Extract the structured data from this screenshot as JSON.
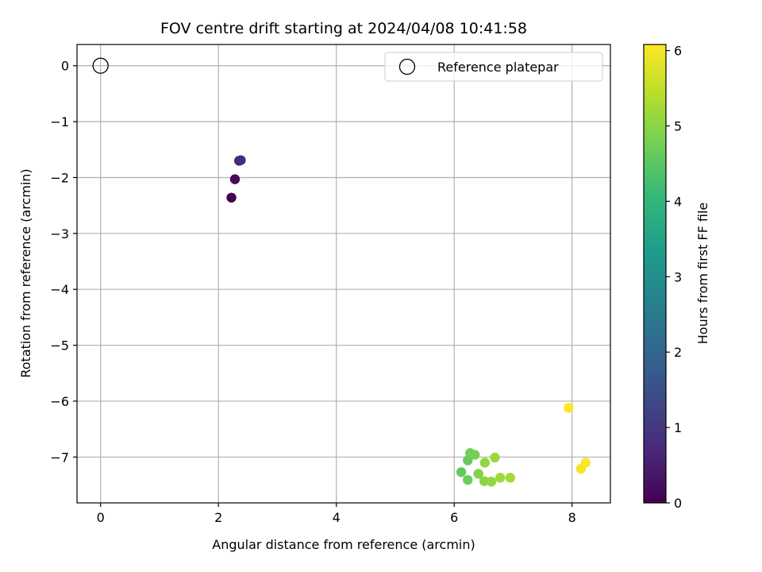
{
  "chart_data": {
    "type": "scatter",
    "title": "FOV centre drift starting at 2024/04/08 10:41:58",
    "xlabel": "Angular distance from reference (arcmin)",
    "ylabel": "Rotation from reference (arcmin)",
    "xlim": [
      -0.4,
      8.65
    ],
    "ylim": [
      -7.82,
      0.38
    ],
    "xticks": [
      0,
      2,
      4,
      6,
      8
    ],
    "yticks": [
      0,
      -1,
      -2,
      -3,
      -4,
      -5,
      -6,
      -7
    ],
    "xtick_labels": [
      "0",
      "2",
      "4",
      "6",
      "8"
    ],
    "ytick_labels": [
      "0",
      "−1",
      "−2",
      "−3",
      "−4",
      "−5",
      "−6",
      "−7"
    ],
    "grid": true,
    "legend": {
      "placement": "top-right",
      "entries": [
        "Reference platepar"
      ]
    },
    "reference_point": {
      "name": "Reference platepar",
      "x": 0,
      "y": 0,
      "marker": "open-circle"
    },
    "colorbar": {
      "label": "Hours from first FF file",
      "range": [
        0,
        6.08
      ],
      "ticks": [
        0,
        1,
        2,
        3,
        4,
        5,
        6
      ],
      "tick_labels": [
        "0",
        "1",
        "2",
        "3",
        "4",
        "5",
        "6"
      ],
      "colormap": "viridis",
      "colors": [
        "#440154",
        "#482878",
        "#3e4989",
        "#31688e",
        "#26828e",
        "#1f9e89",
        "#35b779",
        "#6ece58",
        "#b5de2b",
        "#fde725"
      ]
    },
    "points": [
      {
        "x": 2.22,
        "y": -2.36,
        "t": 0.0
      },
      {
        "x": 2.28,
        "y": -2.03,
        "t": 0.12
      },
      {
        "x": 2.35,
        "y": -1.7,
        "t": 0.6
      },
      {
        "x": 2.38,
        "y": -1.69,
        "t": 0.75
      },
      {
        "x": 6.12,
        "y": -7.27,
        "t": 4.6
      },
      {
        "x": 6.23,
        "y": -7.41,
        "t": 4.7
      },
      {
        "x": 6.23,
        "y": -7.06,
        "t": 4.65
      },
      {
        "x": 6.27,
        "y": -6.93,
        "t": 4.75
      },
      {
        "x": 6.35,
        "y": -6.96,
        "t": 4.8
      },
      {
        "x": 6.41,
        "y": -7.3,
        "t": 4.9
      },
      {
        "x": 6.51,
        "y": -7.43,
        "t": 5.0
      },
      {
        "x": 6.52,
        "y": -7.1,
        "t": 5.05
      },
      {
        "x": 6.63,
        "y": -7.44,
        "t": 5.1
      },
      {
        "x": 6.69,
        "y": -7.01,
        "t": 5.15
      },
      {
        "x": 6.78,
        "y": -7.37,
        "t": 5.2
      },
      {
        "x": 6.95,
        "y": -7.37,
        "t": 5.25
      },
      {
        "x": 7.94,
        "y": -6.12,
        "t": 6.05
      },
      {
        "x": 8.15,
        "y": -7.21,
        "t": 6.0
      },
      {
        "x": 8.23,
        "y": -7.1,
        "t": 6.05
      }
    ]
  }
}
